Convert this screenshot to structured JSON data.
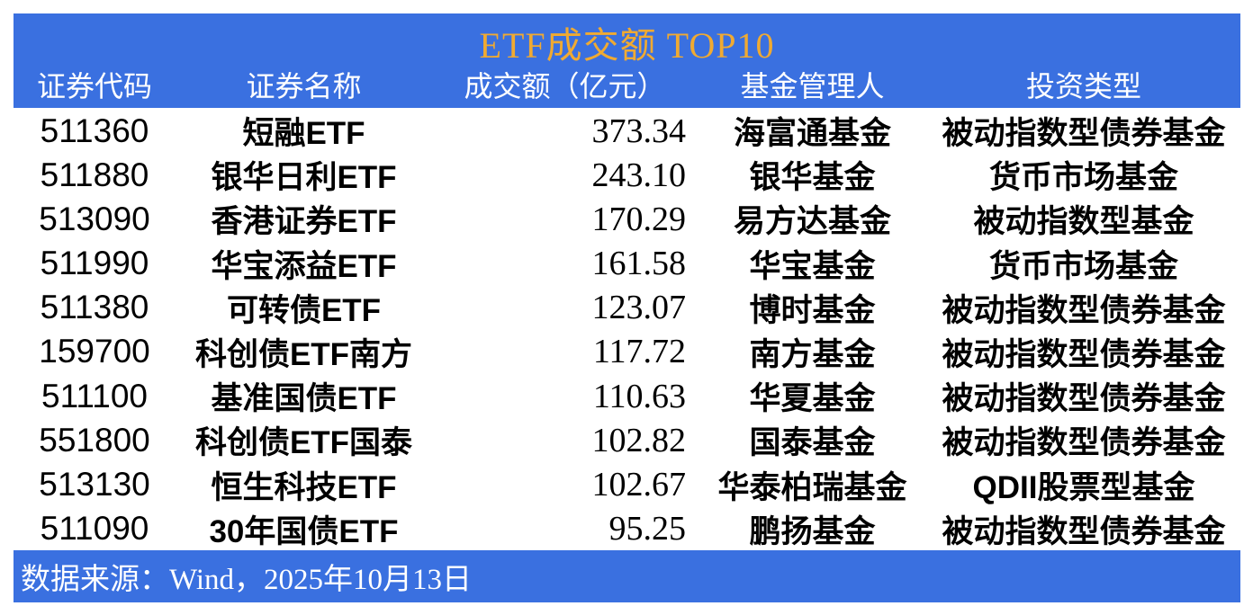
{
  "title": "ETF成交额 TOP10",
  "colors": {
    "band_blue": "#3A70E0",
    "title_gold": "#F0AA32",
    "header_text": "#FFFFFF",
    "body_text": "#000000",
    "body_bg": "#FFFFFF"
  },
  "chart_data": {
    "type": "table",
    "title": "ETF成交额 TOP10",
    "columns": [
      "证券代码",
      "证券名称",
      "成交额（亿元）",
      "基金管理人",
      "投资类型"
    ],
    "rows": [
      [
        "511360",
        "短融ETF",
        "373.34",
        "海富通基金",
        "被动指数型债券基金"
      ],
      [
        "511880",
        "银华日利ETF",
        "243.10",
        "银华基金",
        "货币市场基金"
      ],
      [
        "513090",
        "香港证券ETF",
        "170.29",
        "易方达基金",
        "被动指数型基金"
      ],
      [
        "511990",
        "华宝添益ETF",
        "161.58",
        "华宝基金",
        "货币市场基金"
      ],
      [
        "511380",
        "可转债ETF",
        "123.07",
        "博时基金",
        "被动指数型债券基金"
      ],
      [
        "159700",
        "科创债ETF南方",
        "117.72",
        "南方基金",
        "被动指数型债券基金"
      ],
      [
        "511100",
        "基准国债ETF",
        "110.63",
        "华夏基金",
        "被动指数型债券基金"
      ],
      [
        "551800",
        "科创债ETF国泰",
        "102.82",
        "国泰基金",
        "被动指数型债券基金"
      ],
      [
        "513130",
        "恒生科技ETF",
        "102.67",
        "华泰柏瑞基金",
        "QDII股票型基金"
      ],
      [
        "511090",
        "30年国债ETF",
        "95.25",
        "鹏扬基金",
        "被动指数型债券基金"
      ]
    ],
    "value_column_unit": "亿元",
    "layout": {
      "legend": "none",
      "grid": "off"
    }
  },
  "footer": {
    "source_label": "数据来源：Wind，2025年10月13日"
  }
}
